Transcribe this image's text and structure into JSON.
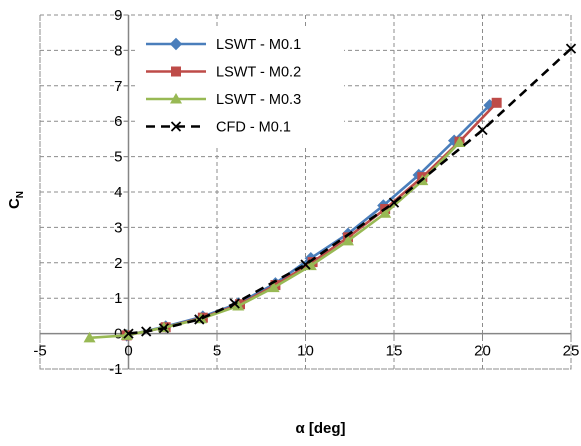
{
  "chart_data": {
    "type": "line",
    "title": "",
    "xlabel": "α [deg]",
    "ylabel": "C",
    "ylabel_subscript": "N",
    "xlim": [
      -5,
      25
    ],
    "ylim": [
      -1,
      9
    ],
    "x_ticks": [
      -5,
      0,
      5,
      10,
      15,
      20,
      25
    ],
    "y_ticks": [
      -1,
      0,
      1,
      2,
      3,
      4,
      5,
      6,
      7,
      8,
      9
    ],
    "grid": true,
    "grid_style": "dashed",
    "legend_position": "top-left",
    "series": [
      {
        "name": "LSWT - M0.1",
        "color": "#4A7EBB",
        "marker": "diamond",
        "line": "solid",
        "x": [
          -0.1,
          2.1,
          4.2,
          6.2,
          8.3,
          10.3,
          12.4,
          14.4,
          16.4,
          18.4,
          20.4
        ],
        "y": [
          -0.05,
          0.2,
          0.48,
          0.85,
          1.42,
          2.13,
          2.82,
          3.62,
          4.48,
          5.45,
          6.45
        ]
      },
      {
        "name": "LSWT - M0.2",
        "color": "#BE4B48",
        "marker": "square",
        "line": "solid",
        "x": [
          -0.1,
          2.1,
          4.2,
          6.3,
          8.3,
          10.4,
          12.4,
          14.5,
          16.6,
          18.7,
          20.8
        ],
        "y": [
          -0.05,
          0.18,
          0.45,
          0.83,
          1.37,
          2.02,
          2.72,
          3.52,
          4.42,
          5.42,
          6.52
        ]
      },
      {
        "name": "LSWT - M0.3",
        "color": "#98B954",
        "marker": "triangle",
        "line": "solid",
        "x": [
          -2.2,
          -0.1,
          2.0,
          4.1,
          6.2,
          8.2,
          10.3,
          12.4,
          14.5,
          16.6,
          18.7
        ],
        "y": [
          -0.12,
          -0.05,
          0.17,
          0.42,
          0.78,
          1.3,
          1.92,
          2.62,
          3.4,
          4.32,
          5.4
        ]
      },
      {
        "name": "CFD - M0.1",
        "color": "#000000",
        "marker": "x",
        "line": "dashed",
        "x": [
          0,
          1,
          2,
          4,
          6,
          10,
          15,
          20,
          25
        ],
        "y": [
          0,
          0.06,
          0.15,
          0.4,
          0.85,
          1.95,
          3.7,
          5.75,
          8.05
        ]
      }
    ]
  }
}
